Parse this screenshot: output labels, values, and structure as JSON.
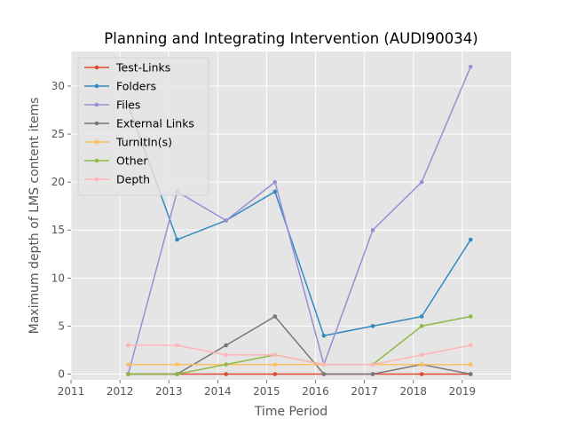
{
  "chart_data": {
    "type": "line",
    "title": "Planning and Integrating Intervention (AUDI90034)",
    "xlabel": "Time Period",
    "ylabel": "Maximum depth of LMS content items",
    "x_ticks": [
      "2011",
      "2012",
      "2013",
      "2014",
      "2015",
      "2016",
      "2017",
      "2018",
      "2019"
    ],
    "y_ticks": [
      "0",
      "5",
      "10",
      "15",
      "20",
      "25",
      "30"
    ],
    "xlim": [
      2011,
      2020
    ],
    "ylim": [
      -0.6,
      33.6
    ],
    "grid": true,
    "legend_position": "top-left",
    "x": [
      2012.17,
      2013.17,
      2014.17,
      2015.17,
      2016.17,
      2017.17,
      2018.17,
      2019.17
    ],
    "series": [
      {
        "name": "Test-Links",
        "color": "#E24A33",
        "values": [
          0,
          0,
          0,
          0,
          0,
          0,
          0,
          0
        ]
      },
      {
        "name": "Folders",
        "color": "#348ABD",
        "values": [
          28,
          14,
          16,
          19,
          4,
          5,
          6,
          14
        ]
      },
      {
        "name": "Files",
        "color": "#988ED5",
        "values": [
          0,
          19,
          16,
          20,
          1,
          15,
          20,
          32
        ]
      },
      {
        "name": "External Links",
        "color": "#777777",
        "values": [
          0,
          0,
          3,
          6,
          0,
          0,
          1,
          0
        ]
      },
      {
        "name": "TurnItIn(s)",
        "color": "#FBC15E",
        "values": [
          1,
          1,
          1,
          1,
          1,
          1,
          1,
          1
        ]
      },
      {
        "name": "Other",
        "color": "#8EBA42",
        "values": [
          0,
          0,
          1,
          2,
          1,
          1,
          5,
          6
        ]
      },
      {
        "name": "Depth",
        "color": "#FFB5B8",
        "values": [
          3,
          3,
          2,
          2,
          1,
          1,
          2,
          3
        ]
      }
    ]
  }
}
